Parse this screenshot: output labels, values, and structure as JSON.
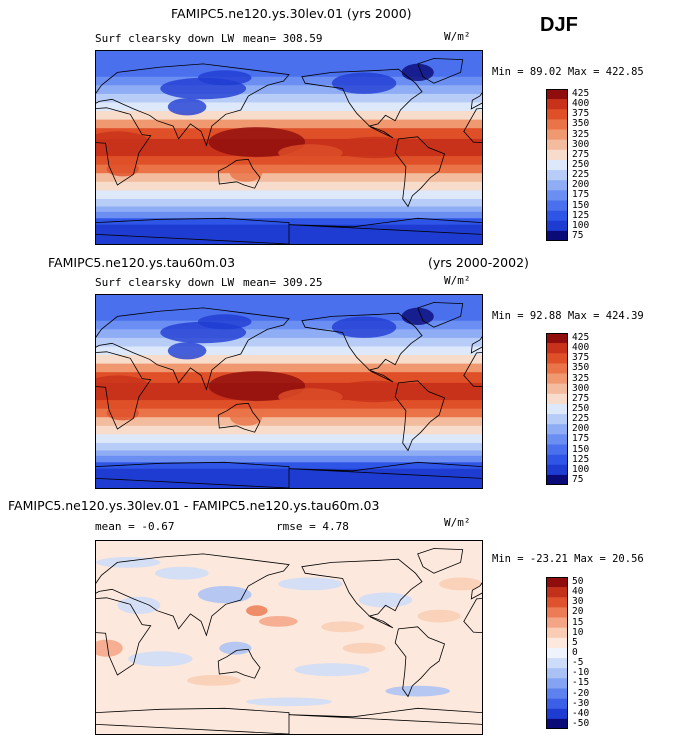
{
  "season": "DJF",
  "panels": [
    {
      "case": "FAMIPC5.ne120.ys.30lev.01 (yrs 2000)",
      "years": "",
      "variable": "Surf clearsky down LW",
      "mean_label": "mean= 308.59",
      "rmse_label": "",
      "units": "W/m²",
      "min_max": "Min =  89.02 Max = 422.85",
      "mode": "abs",
      "colorbar_levels": [
        "425",
        "400",
        "375",
        "350",
        "325",
        "300",
        "275",
        "250",
        "225",
        "200",
        "175",
        "150",
        "125",
        "100",
        "75"
      ]
    },
    {
      "case": "FAMIPC5.ne120.ys.tau60m.03",
      "years": "(yrs 2000-2002)",
      "variable": "Surf clearsky down LW",
      "mean_label": "mean= 309.25",
      "rmse_label": "",
      "units": "W/m²",
      "min_max": "Min =  92.88 Max = 424.39",
      "mode": "abs",
      "colorbar_levels": [
        "425",
        "400",
        "375",
        "350",
        "325",
        "300",
        "275",
        "250",
        "225",
        "200",
        "175",
        "150",
        "125",
        "100",
        "75"
      ]
    },
    {
      "case": "FAMIPC5.ne120.ys.30lev.01 - FAMIPC5.ne120.ys.tau60m.03",
      "years": "",
      "variable": "",
      "mean_label": "mean =  -0.67",
      "rmse_label": "rmse =   4.78",
      "units": "W/m²",
      "min_max": "Min = -23.21 Max =  20.56",
      "mode": "diff",
      "colorbar_levels": [
        "50",
        "40",
        "30",
        "20",
        "15",
        "10",
        "5",
        "0",
        "-5",
        "-10",
        "-15",
        "-20",
        "-30",
        "-40",
        "-50"
      ]
    }
  ],
  "colors": {
    "abs_scale": [
      "#0a0a78",
      "#1f3cd2",
      "#2e55e6",
      "#4a70ee",
      "#6a8ef2",
      "#8fadf4",
      "#b7cdf7",
      "#dde8fa",
      "#f8dccb",
      "#f4bc9e",
      "#f0986f",
      "#ea7348",
      "#df4f28",
      "#c8321a",
      "#8f0d0d"
    ],
    "diff_scale": [
      "#0a0a78",
      "#1f3cd2",
      "#3c5fe8",
      "#5d81ee",
      "#84a3f2",
      "#a9c1f5",
      "#cddcf8",
      "#eef3fc",
      "#fce8dc",
      "#f9cdb3",
      "#f4a585",
      "#ec7c55",
      "#de532d",
      "#c2311a",
      "#8f0d0d"
    ],
    "land_outline": "#000000"
  }
}
